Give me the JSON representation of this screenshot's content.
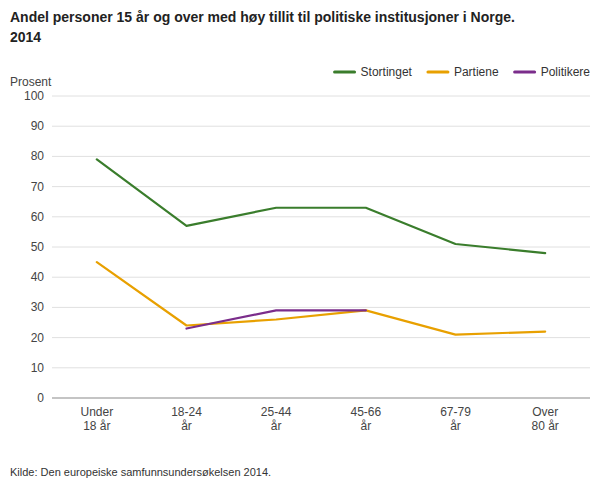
{
  "chart_data": {
    "type": "line",
    "title": "Andel personer 15 år og over med høy tillit til politiske institusjoner i Norge.",
    "subtitle": "2014",
    "ylabel": "Prosent",
    "annotations": [
      "Kilde: Den europeiske samfunnsundersøkelsen 2014."
    ],
    "categories": [
      "Under\n18 år",
      "18-24\når",
      "25-44\når",
      "45-66\når",
      "67-79\når",
      "Over\n80 år"
    ],
    "series": [
      {
        "name": "Stortinget",
        "color": "#3a7d2c",
        "values": [
          79,
          57,
          63,
          63,
          51,
          48
        ]
      },
      {
        "name": "Partiene",
        "color": "#e8a000",
        "values": [
          45,
          24,
          26,
          29,
          21,
          22
        ]
      },
      {
        "name": "Politikere",
        "color": "#7b2d8b",
        "values": [
          null,
          23,
          29,
          29,
          null,
          null
        ]
      }
    ],
    "ylim": [
      0,
      100
    ],
    "yticks": [
      0,
      10,
      20,
      30,
      40,
      50,
      60,
      70,
      80,
      90,
      100
    ],
    "grid": true,
    "legend": "upper right"
  }
}
